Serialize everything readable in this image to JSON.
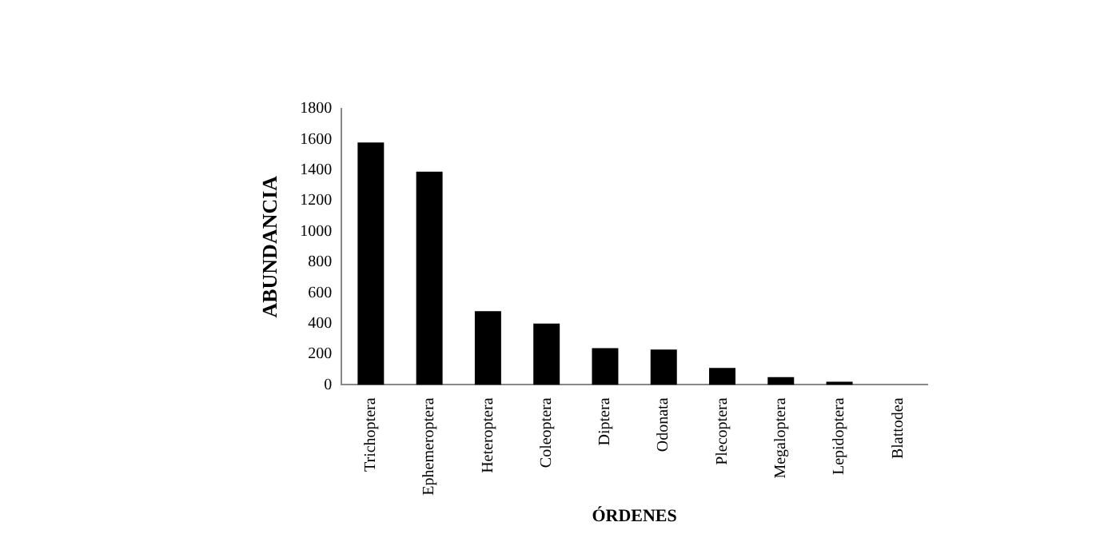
{
  "chart_data": {
    "type": "bar",
    "xlabel": "ÓRDENES",
    "ylabel": "ABUNDANCIA",
    "categories": [
      "Trichoptera",
      "Ephemeroptera",
      "Heteroptera",
      "Coleoptera",
      "Diptera",
      "Odonata",
      "Plecoptera",
      "Megaloptera",
      "Lepidoptera",
      "Blattodea"
    ],
    "values": [
      1580,
      1390,
      480,
      400,
      240,
      230,
      110,
      50,
      20,
      null
    ],
    "color": "#000000",
    "ylim": [
      0,
      1800
    ],
    "yticks": [
      0,
      200,
      400,
      600,
      800,
      1000,
      1200,
      1400,
      1600,
      1800
    ],
    "grid": false,
    "legend": false
  }
}
